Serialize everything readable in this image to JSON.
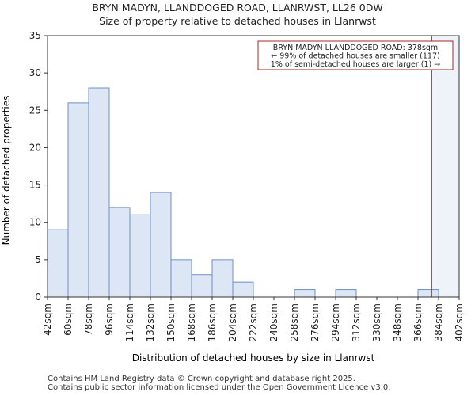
{
  "chart_data": {
    "type": "histogram",
    "title_lines": [
      "BRYN MADYN, LLANDDOGED ROAD, LLANRWST, LL26 0DW",
      "Size of property relative to detached houses in Llanrwst"
    ],
    "xlabel": "Distribution of detached houses by size in Llanrwst",
    "ylabel": "Number of detached properties",
    "x_ticks": [
      "42sqm",
      "60sqm",
      "78sqm",
      "96sqm",
      "114sqm",
      "132sqm",
      "150sqm",
      "168sqm",
      "186sqm",
      "204sqm",
      "222sqm",
      "240sqm",
      "258sqm",
      "276sqm",
      "294sqm",
      "312sqm",
      "330sqm",
      "348sqm",
      "366sqm",
      "384sqm",
      "402sqm"
    ],
    "bin_edges": [
      42,
      60,
      78,
      96,
      114,
      132,
      150,
      168,
      186,
      204,
      222,
      240,
      258,
      276,
      294,
      312,
      330,
      348,
      366,
      384,
      402
    ],
    "values": [
      9,
      26,
      28,
      12,
      11,
      14,
      5,
      3,
      5,
      2,
      0,
      0,
      1,
      0,
      1,
      0,
      0,
      0,
      1,
      0
    ],
    "y_ticks": [
      0,
      5,
      10,
      15,
      20,
      25,
      30,
      35
    ],
    "ylim": [
      0,
      35
    ],
    "xlim": [
      42,
      402
    ],
    "grid": false,
    "bar_color": "#dce6f4",
    "bar_edge_color": "#6f8fc7",
    "marker": {
      "x": 378,
      "color": "#b22222"
    },
    "highlight_color": "#eef3fa",
    "annotation": {
      "lines": [
        "BRYN MADYN LLANDDOGED ROAD: 378sqm",
        "← 99% of detached houses are smaller (117)",
        "1% of semi-detached houses are larger (1) →"
      ],
      "border_color": "#b22222"
    }
  },
  "footer": {
    "line1": "Contains HM Land Registry data © Crown copyright and database right 2025.",
    "line2": "Contains public sector information licensed under the Open Government Licence v3.0."
  }
}
